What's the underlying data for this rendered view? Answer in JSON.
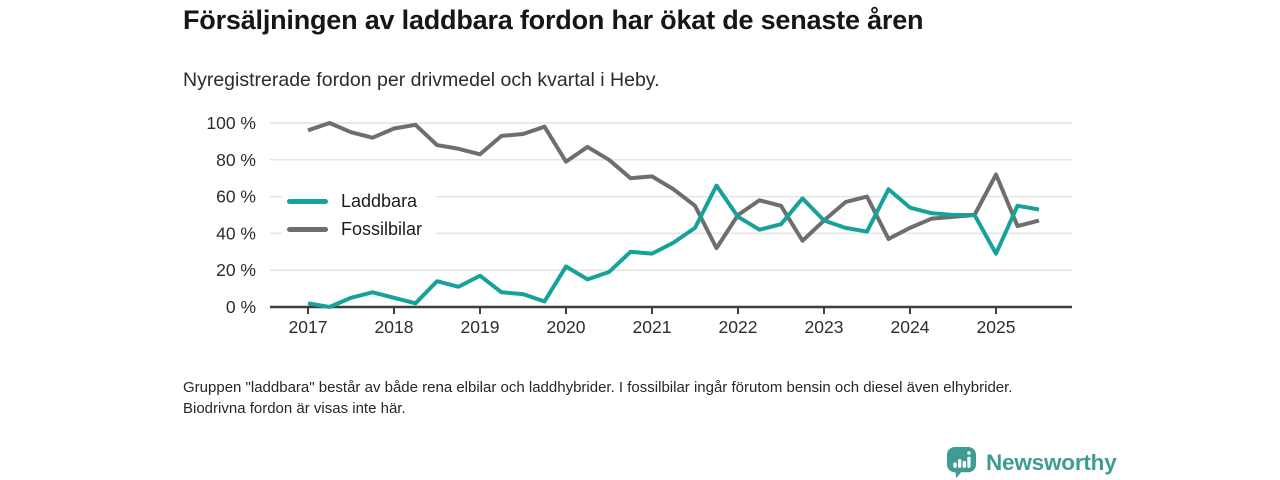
{
  "chart_data": {
    "type": "line",
    "title": "Försäljningen av laddbara fordon har ökat de senaste åren",
    "subtitle": "Nyregistrerade fordon per drivmedel och kvartal i Heby.",
    "x": [
      "2017 Q1",
      "2017 Q2",
      "2017 Q3",
      "2017 Q4",
      "2018 Q1",
      "2018 Q2",
      "2018 Q3",
      "2018 Q4",
      "2019 Q1",
      "2019 Q2",
      "2019 Q3",
      "2019 Q4",
      "2020 Q1",
      "2020 Q2",
      "2020 Q3",
      "2020 Q4",
      "2021 Q1",
      "2021 Q2",
      "2021 Q3",
      "2021 Q4",
      "2022 Q1",
      "2022 Q2",
      "2022 Q3",
      "2022 Q4",
      "2023 Q1",
      "2023 Q2",
      "2023 Q3",
      "2023 Q4",
      "2024 Q1",
      "2024 Q2",
      "2024 Q3",
      "2024 Q4",
      "2025 Q1",
      "2025 Q2",
      "2025 Q3"
    ],
    "x_tick_labels": [
      "2017",
      "2018",
      "2019",
      "2020",
      "2021",
      "2022",
      "2023",
      "2024",
      "2025"
    ],
    "y_tick_labels": [
      "0 %",
      "20 %",
      "40 %",
      "60 %",
      "80 %",
      "100 %"
    ],
    "y_ticks": [
      0,
      20,
      40,
      60,
      80,
      100
    ],
    "ylim": [
      0,
      100
    ],
    "y_unit": "%",
    "grid": true,
    "legend_position": "inside top-left",
    "grid_color": "#e4e4e4",
    "axis_color": "#3f3f3f",
    "series": [
      {
        "name": "Laddbara",
        "color": "#16a29b",
        "values": [
          2,
          0,
          5,
          8,
          5,
          2,
          14,
          11,
          17,
          8,
          7,
          3,
          22,
          15,
          19,
          30,
          29,
          35,
          43,
          66,
          49,
          42,
          45,
          59,
          47,
          43,
          41,
          64,
          54,
          51,
          50,
          50,
          29,
          55,
          53
        ]
      },
      {
        "name": "Fossilbilar",
        "color": "#6e6e6e",
        "values": [
          96,
          100,
          95,
          92,
          97,
          99,
          88,
          86,
          83,
          93,
          94,
          98,
          79,
          87,
          80,
          70,
          71,
          64,
          55,
          32,
          50,
          58,
          55,
          36,
          47,
          57,
          60,
          37,
          43,
          48,
          49,
          50,
          72,
          44,
          47
        ]
      }
    ]
  },
  "footnote": "Gruppen \"laddbara\" består av både rena elbilar och laddhybrider. I fossilbilar ingår förutom bensin och diesel även elhybrider. Biodrivna fordon är visas inte här.",
  "brand": {
    "name": "Newsworthy",
    "color": "#3e9c95",
    "icon": "bar-chart-bubble-icon"
  }
}
